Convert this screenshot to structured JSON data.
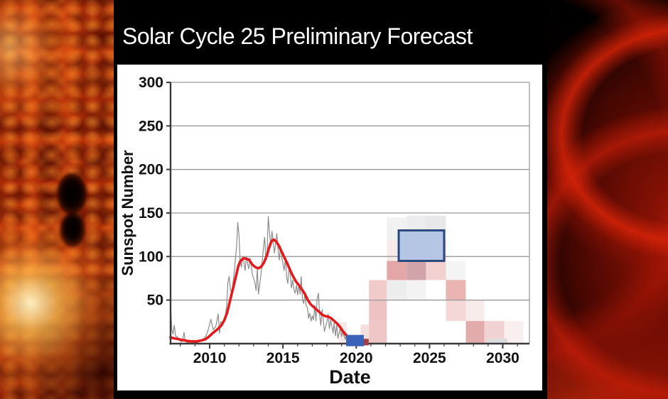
{
  "title": "Solar Cycle 25 Preliminary Forecast",
  "side_images": {
    "left": "solar-surface-with-sunspot",
    "right": "solar-prominence-loops"
  },
  "colors": {
    "background": "#000000",
    "panel": "#ffffff",
    "title_text": "#ffffff",
    "grid": "#9b9b9b",
    "axis": "#3a3a3a",
    "tick_text": "#111111",
    "monthly_line": "#8c8c8c",
    "smoothed_line": "#e41a1c",
    "observed_bar": "#3a62b8",
    "transition_marker": "#a34045",
    "forecast_box_fill": "#b4c6e3",
    "forecast_box_stroke": "#2a4a7f"
  },
  "chart_data": {
    "type": "line",
    "title": "Solar Cycle 25 Preliminary Forecast",
    "xlabel": "Date",
    "ylabel": "Sunspot Number",
    "xlim": [
      2007.33,
      2031.82
    ],
    "ylim": [
      0,
      300
    ],
    "x_major_ticks": [
      2010,
      2015,
      2020,
      2025,
      2030
    ],
    "x_minor_tick_step": 1,
    "y_ticks": [
      50,
      100,
      150,
      200,
      250,
      300
    ],
    "grid": "horizontal",
    "legend": "none",
    "series": [
      {
        "name": "monthly-sunspot-number",
        "color": "#8c8c8c",
        "width": 1.2,
        "points": [
          [
            2007.35,
            38
          ],
          [
            2007.42,
            15
          ],
          [
            2007.5,
            11
          ],
          [
            2007.58,
            21
          ],
          [
            2007.67,
            9
          ],
          [
            2007.83,
            7
          ],
          [
            2007.92,
            4
          ],
          [
            2008.08,
            2
          ],
          [
            2008.17,
            5
          ],
          [
            2008.25,
            13
          ],
          [
            2008.33,
            3
          ],
          [
            2008.5,
            1
          ],
          [
            2008.67,
            3
          ],
          [
            2008.83,
            2
          ],
          [
            2008.92,
            1
          ],
          [
            2009.08,
            1
          ],
          [
            2009.25,
            2
          ],
          [
            2009.42,
            3
          ],
          [
            2009.58,
            5
          ],
          [
            2009.75,
            9
          ],
          [
            2009.92,
            17
          ],
          [
            2010.08,
            28
          ],
          [
            2010.25,
            16
          ],
          [
            2010.42,
            20
          ],
          [
            2010.58,
            34
          ],
          [
            2010.67,
            12
          ],
          [
            2010.75,
            25
          ],
          [
            2010.92,
            24
          ],
          [
            2011.08,
            33
          ],
          [
            2011.17,
            46
          ],
          [
            2011.25,
            71
          ],
          [
            2011.33,
            77
          ],
          [
            2011.42,
            62
          ],
          [
            2011.5,
            58
          ],
          [
            2011.58,
            68
          ],
          [
            2011.67,
            81
          ],
          [
            2011.75,
            96
          ],
          [
            2011.83,
            110
          ],
          [
            2011.92,
            139
          ],
          [
            2012.0,
            125
          ],
          [
            2012.08,
            95
          ],
          [
            2012.17,
            88
          ],
          [
            2012.25,
            99
          ],
          [
            2012.33,
            94
          ],
          [
            2012.42,
            84
          ],
          [
            2012.5,
            100
          ],
          [
            2012.58,
            92
          ],
          [
            2012.67,
            86
          ],
          [
            2012.75,
            98
          ],
          [
            2012.83,
            90
          ],
          [
            2012.92,
            79
          ],
          [
            2013.0,
            75
          ],
          [
            2013.08,
            70
          ],
          [
            2013.17,
            61
          ],
          [
            2013.25,
            86
          ],
          [
            2013.33,
            57
          ],
          [
            2013.42,
            69
          ],
          [
            2013.5,
            79
          ],
          [
            2013.58,
            94
          ],
          [
            2013.67,
            110
          ],
          [
            2013.75,
            122
          ],
          [
            2013.83,
            98
          ],
          [
            2013.92,
            106
          ],
          [
            2014.0,
            146
          ],
          [
            2014.08,
            128
          ],
          [
            2014.17,
            113
          ],
          [
            2014.25,
            129
          ],
          [
            2014.33,
            119
          ],
          [
            2014.42,
            104
          ],
          [
            2014.5,
            115
          ],
          [
            2014.58,
            126
          ],
          [
            2014.67,
            107
          ],
          [
            2014.75,
            96
          ],
          [
            2014.83,
            112
          ],
          [
            2014.92,
            99
          ],
          [
            2015.0,
            92
          ],
          [
            2015.08,
            84
          ],
          [
            2015.17,
            98
          ],
          [
            2015.25,
            77
          ],
          [
            2015.33,
            69
          ],
          [
            2015.42,
            88
          ],
          [
            2015.5,
            79
          ],
          [
            2015.58,
            64
          ],
          [
            2015.67,
            73
          ],
          [
            2015.75,
            62
          ],
          [
            2015.83,
            58
          ],
          [
            2015.92,
            67
          ],
          [
            2016.0,
            56
          ],
          [
            2016.08,
            68
          ],
          [
            2016.17,
            57
          ],
          [
            2016.25,
            77
          ],
          [
            2016.33,
            51
          ],
          [
            2016.42,
            46
          ],
          [
            2016.5,
            59
          ],
          [
            2016.58,
            44
          ],
          [
            2016.67,
            41
          ],
          [
            2016.75,
            29
          ],
          [
            2016.83,
            35
          ],
          [
            2016.92,
            26
          ],
          [
            2017.0,
            32
          ],
          [
            2017.08,
            27
          ],
          [
            2017.17,
            44
          ],
          [
            2017.25,
            26
          ],
          [
            2017.33,
            51
          ],
          [
            2017.42,
            58
          ],
          [
            2017.5,
            34
          ],
          [
            2017.58,
            21
          ],
          [
            2017.67,
            39
          ],
          [
            2017.75,
            27
          ],
          [
            2017.83,
            14
          ],
          [
            2017.92,
            20
          ],
          [
            2018.0,
            25
          ],
          [
            2018.08,
            34
          ],
          [
            2018.17,
            17
          ],
          [
            2018.25,
            27
          ],
          [
            2018.33,
            21
          ],
          [
            2018.42,
            12
          ],
          [
            2018.5,
            24
          ],
          [
            2018.58,
            9
          ],
          [
            2018.67,
            21
          ],
          [
            2018.75,
            6
          ],
          [
            2018.83,
            12
          ],
          [
            2018.92,
            18
          ],
          [
            2019.0,
            8
          ],
          [
            2019.08,
            14
          ],
          [
            2019.17,
            9
          ],
          [
            2019.25,
            5
          ],
          [
            2019.33,
            11
          ],
          [
            2019.42,
            2
          ],
          [
            2019.5,
            7
          ],
          [
            2019.58,
            1
          ],
          [
            2019.67,
            5
          ],
          [
            2019.75,
            1
          ],
          [
            2019.83,
            2
          ]
        ]
      },
      {
        "name": "smoothed-sunspot-number",
        "color": "#e41a1c",
        "width": 3.6,
        "points": [
          [
            2007.33,
            7
          ],
          [
            2007.6,
            6
          ],
          [
            2007.9,
            5
          ],
          [
            2008.2,
            4
          ],
          [
            2008.5,
            3
          ],
          [
            2008.8,
            2.5
          ],
          [
            2009.1,
            2.5
          ],
          [
            2009.4,
            3.5
          ],
          [
            2009.7,
            5
          ],
          [
            2009.95,
            8
          ],
          [
            2010.2,
            12
          ],
          [
            2010.5,
            16
          ],
          [
            2010.8,
            21
          ],
          [
            2011.0,
            27
          ],
          [
            2011.2,
            36
          ],
          [
            2011.4,
            50
          ],
          [
            2011.6,
            64
          ],
          [
            2011.8,
            78
          ],
          [
            2011.95,
            89
          ],
          [
            2012.1,
            95
          ],
          [
            2012.3,
            98
          ],
          [
            2012.5,
            97.5
          ],
          [
            2012.7,
            96
          ],
          [
            2012.9,
            91
          ],
          [
            2013.1,
            88
          ],
          [
            2013.3,
            86.5
          ],
          [
            2013.5,
            88
          ],
          [
            2013.7,
            93
          ],
          [
            2013.9,
            101
          ],
          [
            2014.05,
            110
          ],
          [
            2014.2,
            117
          ],
          [
            2014.35,
            119.5
          ],
          [
            2014.5,
            118
          ],
          [
            2014.7,
            113
          ],
          [
            2014.9,
            106
          ],
          [
            2015.1,
            99
          ],
          [
            2015.3,
            92
          ],
          [
            2015.5,
            84
          ],
          [
            2015.7,
            77
          ],
          [
            2015.9,
            71
          ],
          [
            2016.1,
            67
          ],
          [
            2016.3,
            62
          ],
          [
            2016.5,
            57
          ],
          [
            2016.7,
            50
          ],
          [
            2016.9,
            45
          ],
          [
            2017.1,
            42
          ],
          [
            2017.3,
            39
          ],
          [
            2017.5,
            36
          ],
          [
            2017.7,
            33
          ],
          [
            2017.9,
            31.5
          ],
          [
            2018.1,
            31
          ],
          [
            2018.3,
            29
          ],
          [
            2018.5,
            26
          ],
          [
            2018.7,
            23
          ],
          [
            2018.9,
            19
          ],
          [
            2019.1,
            14
          ],
          [
            2019.3,
            10
          ],
          [
            2019.5,
            7
          ],
          [
            2019.65,
            5.5
          ]
        ]
      }
    ],
    "observed_bar": {
      "x0": 2019.31,
      "x1": 2020.52,
      "ssn_top": 10,
      "ssn_bottom": -3,
      "color": "#3a62b8"
    },
    "transition_marker": {
      "x0": 2020.52,
      "x1": 2020.85,
      "ssn_top": 5.5,
      "ssn_bottom": -2,
      "color": "#a34045"
    },
    "forecast_box": {
      "x0": 2022.9,
      "x1": 2026.0,
      "y0": 95,
      "y1": 130,
      "fill": "#b4c6e3",
      "stroke": "#2a4a7f",
      "stroke_width": 3
    },
    "forecast_cells": [
      {
        "x0": 2018.85,
        "x1": 2019.35,
        "y0": 0,
        "y1": 25,
        "color": "#f8e8e8"
      },
      {
        "x0": 2020.3,
        "x1": 2020.87,
        "y0": 0,
        "y1": 22,
        "color": "#f5dede"
      },
      {
        "x0": 2020.87,
        "x1": 2022.09,
        "y0": 0,
        "y1": 26,
        "color": "#efc6c6"
      },
      {
        "x0": 2020.87,
        "x1": 2022.09,
        "y0": 26,
        "y1": 50,
        "color": "#eec2c2"
      },
      {
        "x0": 2020.87,
        "x1": 2022.09,
        "y0": 50,
        "y1": 73,
        "color": "#f1caca"
      },
      {
        "x0": 2022.09,
        "x1": 2023.45,
        "y0": 50,
        "y1": 73,
        "color": "#ededee"
      },
      {
        "x0": 2022.09,
        "x1": 2023.45,
        "y0": 73,
        "y1": 95,
        "color": "#e3a7a7"
      },
      {
        "x0": 2022.09,
        "x1": 2023.45,
        "y0": 95,
        "y1": 119,
        "color": "#f6eaea"
      },
      {
        "x0": 2022.09,
        "x1": 2023.45,
        "y0": 119,
        "y1": 145,
        "color": "#f1f1f2"
      },
      {
        "x0": 2023.45,
        "x1": 2024.76,
        "y0": 50,
        "y1": 73,
        "color": "#f3f3f4"
      },
      {
        "x0": 2023.45,
        "x1": 2024.76,
        "y0": 73,
        "y1": 95,
        "color": "#d0a4a9"
      },
      {
        "x0": 2023.45,
        "x1": 2024.76,
        "y0": 95,
        "y1": 119,
        "color": "#ecc6c6"
      },
      {
        "x0": 2023.45,
        "x1": 2024.76,
        "y0": 119,
        "y1": 147,
        "color": "#ececee"
      },
      {
        "x0": 2024.76,
        "x1": 2026.12,
        "y0": 73,
        "y1": 95,
        "color": "#f3d1d1"
      },
      {
        "x0": 2024.76,
        "x1": 2026.12,
        "y0": 95,
        "y1": 119,
        "color": "#eec1c1"
      },
      {
        "x0": 2024.76,
        "x1": 2026.12,
        "y0": 119,
        "y1": 147,
        "color": "#e8e8ea"
      },
      {
        "x0": 2026.12,
        "x1": 2027.48,
        "y0": 73,
        "y1": 95,
        "color": "#f5f4f4"
      },
      {
        "x0": 2026.12,
        "x1": 2027.48,
        "y0": 50,
        "y1": 73,
        "color": "#e9b4b1"
      },
      {
        "x0": 2026.12,
        "x1": 2027.48,
        "y0": 26,
        "y1": 50,
        "color": "#f4d8d8"
      },
      {
        "x0": 2027.48,
        "x1": 2028.74,
        "y0": 26,
        "y1": 50,
        "color": "#f8ebeb"
      },
      {
        "x0": 2027.48,
        "x1": 2028.74,
        "y0": 0,
        "y1": 26,
        "color": "#e3acac"
      },
      {
        "x0": 2028.74,
        "x1": 2030.1,
        "y0": 0,
        "y1": 26,
        "color": "#f0d2d2"
      },
      {
        "x0": 2030.1,
        "x1": 2031.41,
        "y0": 0,
        "y1": 26,
        "color": "#f9efef"
      },
      {
        "x0": 2029.0,
        "x1": 2030.3,
        "y0": 0,
        "y1": 6,
        "color": "#dcdcdf"
      }
    ]
  }
}
